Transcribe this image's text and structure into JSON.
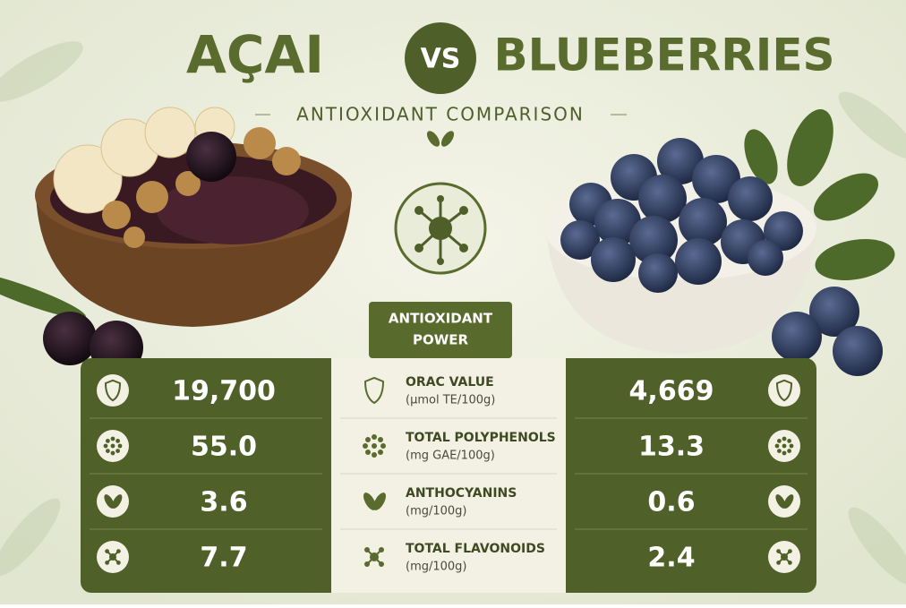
{
  "header": {
    "left": "AÇAI",
    "vs": "VS",
    "right": "BLUEBERRIES",
    "subtitle": "ANTIOXIDANT COMPARISON"
  },
  "badge": {
    "line1": "ANTIOXIDANT",
    "line2": "POWER"
  },
  "table": {
    "rows": [
      {
        "acai": "19,700",
        "metric": "ORAC VALUE",
        "unit": "(µmol TE/100g)",
        "blueberry": "4,669"
      },
      {
        "acai": "55.0",
        "metric": "TOTAL POLYPHENOLS",
        "unit": "(mg GAE/100g)",
        "blueberry": "13.3"
      },
      {
        "acai": "3.6",
        "metric": "ANTHOCYANINS",
        "unit": "(mg/100g)",
        "blueberry": "0.6"
      },
      {
        "acai": "7.7",
        "metric": "TOTAL FLAVONOIDS",
        "unit": "(mg/100g)",
        "blueberry": "2.4"
      }
    ]
  }
}
